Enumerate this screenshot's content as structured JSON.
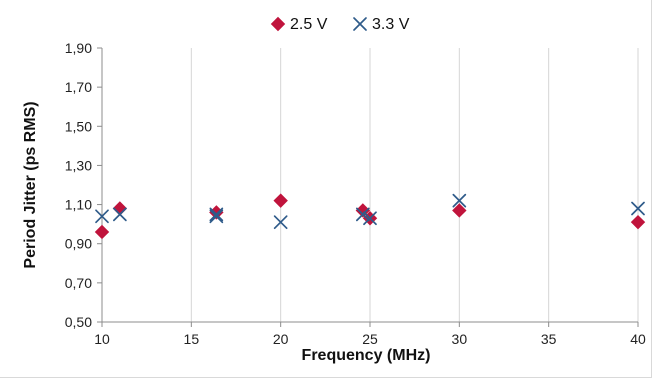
{
  "chart_data": {
    "type": "scatter",
    "title": "",
    "xlabel": "Frequency (MHz)",
    "ylabel": "Period Jitter  (ps RMS)",
    "xlim": [
      10,
      40
    ],
    "ylim": [
      0.5,
      1.9
    ],
    "xticks": [
      "10",
      "15",
      "20",
      "25",
      "30",
      "35",
      "40"
    ],
    "yticks": [
      "0,50",
      "0,70",
      "0,90",
      "1,10",
      "1,30",
      "1,50",
      "1,70",
      "1,90"
    ],
    "grid": "vertical",
    "legend_position": "top-center",
    "series": [
      {
        "name": "2.5 V",
        "marker": "diamond",
        "color": "#c0143c",
        "points": [
          [
            10,
            0.96
          ],
          [
            11,
            1.08
          ],
          [
            16.4,
            1.06
          ],
          [
            20,
            1.12
          ],
          [
            24.6,
            1.07
          ],
          [
            25,
            1.03
          ],
          [
            30,
            1.07
          ],
          [
            40,
            1.01
          ]
        ]
      },
      {
        "name": "3.3 V",
        "marker": "x",
        "color": "#2f5b8a",
        "points": [
          [
            10,
            1.04
          ],
          [
            11,
            1.05
          ],
          [
            16.4,
            1.04
          ],
          [
            16.4,
            1.05
          ],
          [
            20,
            1.01
          ],
          [
            24.6,
            1.05
          ],
          [
            25,
            1.03
          ],
          [
            30,
            1.12
          ],
          [
            40,
            1.08
          ]
        ]
      }
    ]
  }
}
